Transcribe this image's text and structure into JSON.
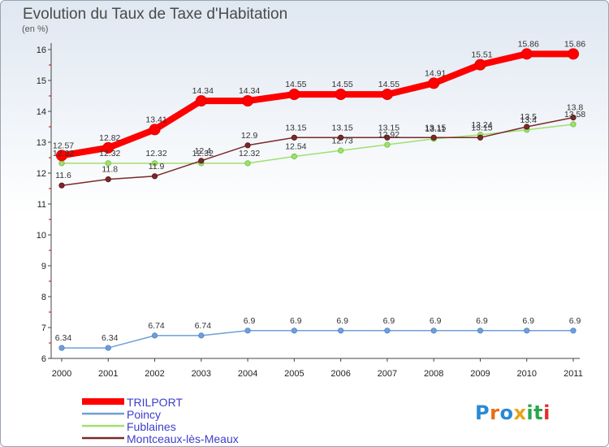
{
  "title": "Evolution du Taux de Taxe d'Habitation",
  "subtitle": "(en %)",
  "logo": {
    "text": "Proxiti",
    "letters": [
      "P",
      "r",
      "o",
      "x",
      "i",
      "t",
      "i"
    ],
    "colors": [
      "#2a8ad4",
      "#e86c1a",
      "#2a8ad4",
      "#e8a317",
      "#2aa64a",
      "#2aa64a",
      "#e82a2a"
    ]
  },
  "chart_data": {
    "type": "line",
    "x": [
      "2000",
      "2001",
      "2002",
      "2003",
      "2004",
      "2005",
      "2006",
      "2007",
      "2008",
      "2009",
      "2010",
      "2011"
    ],
    "ylim": [
      6,
      16
    ],
    "yticks": [
      6,
      7,
      8,
      9,
      10,
      11,
      12,
      13,
      14,
      15,
      16
    ],
    "grid": false,
    "legend_position": "bottom-left",
    "series": [
      {
        "name": "TRILPORT",
        "color": "#ff0000",
        "stroke_color": "#e00000",
        "values": [
          12.57,
          12.82,
          13.41,
          14.34,
          14.34,
          14.55,
          14.55,
          14.55,
          14.91,
          15.51,
          15.86,
          15.86
        ],
        "labels": [
          "12.57",
          "12.82",
          "13.41",
          "14.34",
          "14.34",
          "14.55",
          "14.55",
          "14.55",
          "14.91",
          "15.51",
          "15.86",
          "15.86"
        ]
      },
      {
        "name": "Poincy",
        "color": "#6f9fd8",
        "stroke_color": "#4d80c0",
        "values": [
          6.34,
          6.34,
          6.74,
          6.74,
          6.9,
          6.9,
          6.9,
          6.9,
          6.9,
          6.9,
          6.9,
          6.9
        ],
        "labels": [
          "6.34",
          "6.34",
          "6.74",
          "6.74",
          "6.9",
          "6.9",
          "6.9",
          "6.9",
          "6.9",
          "6.9",
          "6.9",
          "6.9"
        ]
      },
      {
        "name": "Fublaines",
        "color": "#9fe070",
        "stroke_color": "#68c030",
        "values": [
          12.32,
          12.32,
          12.32,
          12.32,
          12.32,
          12.54,
          12.73,
          12.92,
          13.11,
          13.24,
          13.4,
          13.58
        ],
        "labels": [
          "12.32",
          "12.32",
          "12.32",
          "12.32",
          "12.32",
          "12.54",
          "12.73",
          "12.92",
          "13.11",
          "13.24",
          "13.4",
          "13.58"
        ]
      },
      {
        "name": "Montceaux-lès-Meaux",
        "color": "#7a2a2a",
        "stroke_color": "#5a1010",
        "values": [
          11.6,
          11.8,
          11.9,
          12.4,
          12.9,
          13.15,
          13.15,
          13.15,
          13.15,
          13.15,
          13.5,
          13.8
        ],
        "labels": [
          "11.6",
          "11.8",
          "11.9",
          "12.4",
          "12.9",
          "13.15",
          "13.15",
          "13.15",
          "13.15",
          "13.15",
          "13.5",
          "13.8"
        ]
      }
    ]
  }
}
